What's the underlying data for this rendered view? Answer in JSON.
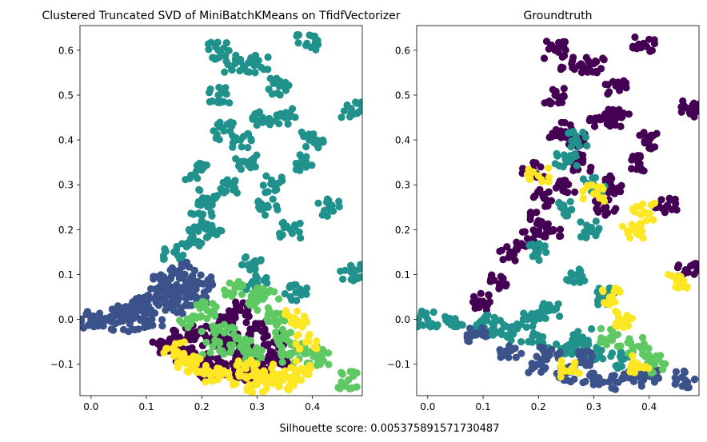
{
  "figure": {
    "footer_text": "Silhouette score: 0.005375891571730487"
  },
  "palette": {
    "purple": "#440154",
    "blue": "#3b528b",
    "teal": "#21918c",
    "green": "#5ec962",
    "yellow": "#fde725"
  },
  "chart_data": [
    {
      "type": "scatter",
      "title": "Clustered Truncated SVD of MiniBatchKMeans on TfidfVectorizer",
      "xlabel": "",
      "ylabel": "",
      "xlim": [
        -0.02,
        0.49
      ],
      "ylim": [
        -0.17,
        0.655
      ],
      "xticks": [
        0.0,
        0.1,
        0.2,
        0.3,
        0.4
      ],
      "yticks": [
        -0.1,
        0.0,
        0.1,
        0.2,
        0.3,
        0.4,
        0.5,
        0.6
      ],
      "grid": false,
      "legend": "none",
      "series": [
        {
          "color": "#21918c",
          "points": [
            [
              0.22,
              0.2
            ],
            [
              0.25,
              0.3
            ],
            [
              0.27,
              0.4
            ],
            [
              0.23,
              0.5
            ],
            [
              0.26,
              0.57
            ],
            [
              0.23,
              0.6
            ],
            [
              0.3,
              0.57
            ],
            [
              0.39,
              0.615
            ],
            [
              0.47,
              0.47
            ],
            [
              0.47,
              0.105
            ],
            [
              0.4,
              0.4
            ],
            [
              0.43,
              0.25
            ],
            [
              0.35,
              0.45
            ],
            [
              0.28,
              0.35
            ],
            [
              0.2,
              0.22
            ],
            [
              0.18,
              0.18
            ],
            [
              0.15,
              0.15
            ],
            [
              0.33,
              0.3
            ],
            [
              0.31,
              0.45
            ],
            [
              0.24,
              0.42
            ],
            [
              0.29,
              0.12
            ],
            [
              0.36,
              0.2
            ],
            [
              0.19,
              0.33
            ],
            [
              0.21,
              0.27
            ],
            [
              0.32,
              0.25
            ],
            [
              0.38,
              0.35
            ],
            [
              0.34,
              0.52
            ],
            [
              0.3,
              0.08
            ],
            [
              0.37,
              0.06
            ]
          ]
        },
        {
          "color": "#3b528b",
          "points": [
            [
              0.0,
              0.0
            ],
            [
              0.02,
              -0.005
            ],
            [
              0.05,
              0.01
            ],
            [
              0.08,
              0.02
            ],
            [
              0.1,
              0.04
            ],
            [
              0.12,
              0.05
            ],
            [
              0.15,
              0.03
            ],
            [
              0.17,
              0.06
            ],
            [
              0.13,
              0.08
            ],
            [
              0.16,
              0.11
            ],
            [
              0.07,
              -0.01
            ],
            [
              0.11,
              0.0
            ],
            [
              0.14,
              0.07
            ],
            [
              0.19,
              0.05
            ],
            [
              0.09,
              0.03
            ],
            [
              0.06,
              0.02
            ],
            [
              0.18,
              0.09
            ],
            [
              0.2,
              0.08
            ]
          ]
        },
        {
          "color": "#440154",
          "points": [
            [
              0.13,
              -0.06
            ],
            [
              0.17,
              -0.08
            ],
            [
              0.2,
              -0.1
            ],
            [
              0.23,
              -0.09
            ],
            [
              0.26,
              -0.11
            ],
            [
              0.29,
              -0.12
            ],
            [
              0.31,
              -0.1
            ],
            [
              0.25,
              -0.05
            ],
            [
              0.22,
              -0.04
            ],
            [
              0.28,
              -0.07
            ],
            [
              0.34,
              -0.09
            ],
            [
              0.19,
              -0.03
            ],
            [
              0.24,
              0.0
            ],
            [
              0.27,
              0.02
            ],
            [
              0.3,
              -0.02
            ],
            [
              0.21,
              -0.12
            ],
            [
              0.33,
              -0.05
            ],
            [
              0.16,
              -0.04
            ]
          ]
        },
        {
          "color": "#5ec962",
          "points": [
            [
              0.18,
              -0.01
            ],
            [
              0.21,
              0.02
            ],
            [
              0.24,
              -0.03
            ],
            [
              0.27,
              -0.06
            ],
            [
              0.3,
              0.04
            ],
            [
              0.33,
              0.0
            ],
            [
              0.35,
              -0.04
            ],
            [
              0.26,
              0.07
            ],
            [
              0.32,
              0.06
            ],
            [
              0.29,
              -0.08
            ],
            [
              0.36,
              -0.08
            ],
            [
              0.22,
              -0.06
            ],
            [
              0.4,
              -0.07
            ],
            [
              0.465,
              -0.135
            ],
            [
              0.41,
              -0.09
            ]
          ]
        },
        {
          "color": "#fde725",
          "points": [
            [
              0.15,
              -0.07
            ],
            [
              0.19,
              -0.1
            ],
            [
              0.22,
              -0.12
            ],
            [
              0.25,
              -0.13
            ],
            [
              0.28,
              -0.11
            ],
            [
              0.31,
              -0.13
            ],
            [
              0.33,
              -0.12
            ],
            [
              0.36,
              -0.13
            ],
            [
              0.38,
              -0.11
            ],
            [
              0.39,
              -0.05
            ],
            [
              0.34,
              -0.14
            ],
            [
              0.3,
              -0.145
            ],
            [
              0.17,
              -0.09
            ],
            [
              0.37,
              0.0
            ]
          ]
        }
      ]
    },
    {
      "type": "scatter",
      "title": "Groundtruth",
      "xlabel": "",
      "ylabel": "",
      "xlim": [
        -0.02,
        0.49
      ],
      "ylim": [
        -0.17,
        0.655
      ],
      "xticks": [
        0.0,
        0.1,
        0.2,
        0.3,
        0.4
      ],
      "yticks": [
        -0.1,
        0.0,
        0.1,
        0.2,
        0.3,
        0.4,
        0.5,
        0.6
      ],
      "grid": false,
      "legend": "none",
      "series": [
        {
          "color": "#440154",
          "points": [
            [
              0.22,
              0.2
            ],
            [
              0.25,
              0.3
            ],
            [
              0.27,
              0.4
            ],
            [
              0.23,
              0.5
            ],
            [
              0.26,
              0.57
            ],
            [
              0.23,
              0.6
            ],
            [
              0.3,
              0.57
            ],
            [
              0.39,
              0.615
            ],
            [
              0.47,
              0.47
            ],
            [
              0.47,
              0.105
            ],
            [
              0.4,
              0.4
            ],
            [
              0.43,
              0.25
            ],
            [
              0.35,
              0.45
            ],
            [
              0.28,
              0.35
            ],
            [
              0.2,
              0.22
            ],
            [
              0.18,
              0.18
            ],
            [
              0.15,
              0.15
            ],
            [
              0.33,
              0.3
            ],
            [
              0.31,
              0.45
            ],
            [
              0.24,
              0.42
            ],
            [
              0.19,
              0.33
            ],
            [
              0.21,
              0.27
            ],
            [
              0.32,
              0.25
            ],
            [
              0.38,
              0.35
            ],
            [
              0.34,
              0.52
            ],
            [
              0.1,
              0.04
            ],
            [
              0.13,
              0.08
            ]
          ]
        },
        {
          "color": "#21918c",
          "points": [
            [
              0.0,
              0.0
            ],
            [
              0.05,
              -0.01
            ],
            [
              0.1,
              -0.02
            ],
            [
              0.15,
              -0.03
            ],
            [
              0.2,
              -0.05
            ],
            [
              0.25,
              -0.06
            ],
            [
              0.3,
              -0.08
            ],
            [
              0.35,
              -0.09
            ],
            [
              0.18,
              0.0
            ],
            [
              0.22,
              0.02
            ],
            [
              0.27,
              0.1
            ],
            [
              0.29,
              0.2
            ],
            [
              0.3,
              0.3
            ],
            [
              0.25,
              0.35
            ],
            [
              0.27,
              0.4
            ],
            [
              0.2,
              0.15
            ],
            [
              0.32,
              0.05
            ],
            [
              0.12,
              -0.01
            ],
            [
              0.28,
              -0.04
            ],
            [
              0.24,
              0.25
            ]
          ]
        },
        {
          "color": "#3b528b",
          "points": [
            [
              0.09,
              -0.03
            ],
            [
              0.15,
              -0.07
            ],
            [
              0.2,
              -0.1
            ],
            [
              0.25,
              -0.12
            ],
            [
              0.3,
              -0.13
            ],
            [
              0.34,
              -0.14
            ],
            [
              0.37,
              -0.13
            ],
            [
              0.4,
              -0.12
            ],
            [
              0.465,
              -0.135
            ],
            [
              0.28,
              -0.09
            ],
            [
              0.22,
              -0.08
            ]
          ]
        },
        {
          "color": "#5ec962",
          "points": [
            [
              0.33,
              -0.04
            ],
            [
              0.38,
              -0.06
            ],
            [
              0.41,
              -0.1
            ]
          ]
        },
        {
          "color": "#fde725",
          "points": [
            [
              0.2,
              0.32
            ],
            [
              0.3,
              0.28
            ],
            [
              0.37,
              0.2
            ],
            [
              0.45,
              0.085
            ],
            [
              0.33,
              0.05
            ],
            [
              0.38,
              -0.1
            ],
            [
              0.26,
              -0.11
            ],
            [
              0.35,
              0.0
            ],
            [
              0.39,
              0.24
            ]
          ]
        }
      ]
    }
  ]
}
